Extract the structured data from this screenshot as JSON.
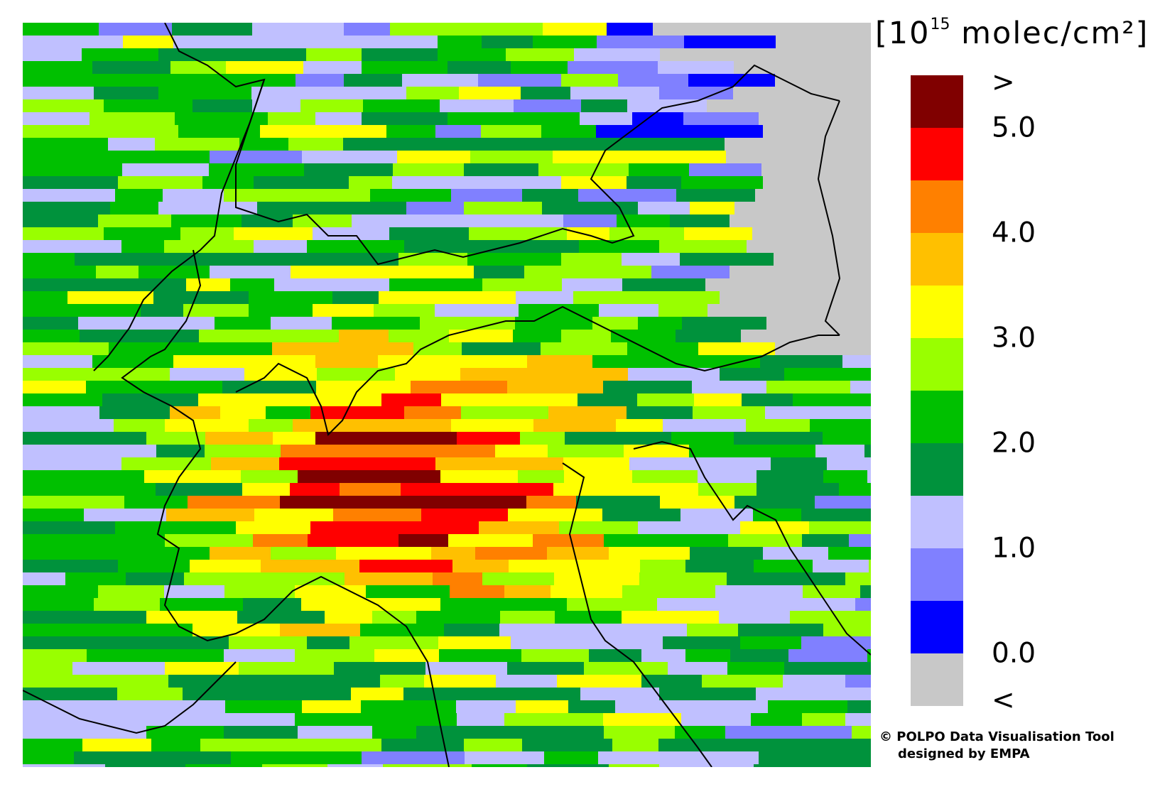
{
  "legend": {
    "unit_prefix": "[10",
    "unit_exponent": "15",
    "unit_suffix": " molec/cm²]",
    "colors": [
      "#800000",
      "#ff0000",
      "#ff8000",
      "#ffc000",
      "#ffff00",
      "#99ff00",
      "#00c000",
      "#00923c",
      "#c0c0ff",
      "#8080ff",
      "#0000ff",
      "#c8c8c8"
    ],
    "labels": [
      {
        "text": ">",
        "at": 0
      },
      {
        "text": "5.0",
        "at": 1
      },
      {
        "text": "4.0",
        "at": 3
      },
      {
        "text": "3.0",
        "at": 5
      },
      {
        "text": "2.0",
        "at": 7
      },
      {
        "text": "1.0",
        "at": 9
      },
      {
        "text": "0.0",
        "at": 11
      },
      {
        "text": "<",
        "at": 12
      }
    ]
  },
  "credits": {
    "line1": "© POLPO Data Visualisation Tool",
    "line2": "designed by EMPA"
  }
}
